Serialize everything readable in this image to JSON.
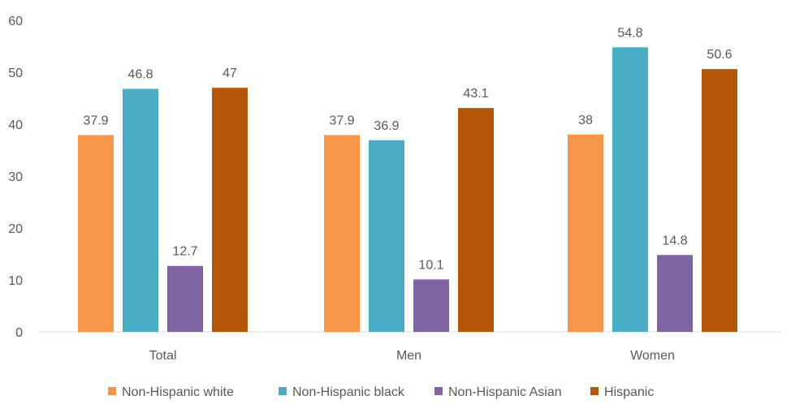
{
  "chart_data": {
    "type": "bar",
    "title": "",
    "xlabel": "",
    "ylabel": "",
    "ylim": [
      0,
      60
    ],
    "yticks": [
      "0",
      "10",
      "20",
      "30",
      "40",
      "50",
      "60"
    ],
    "grid": false,
    "legend_position": "bottom",
    "categories": [
      "Total",
      "Men",
      "Women"
    ],
    "series": [
      {
        "name": "Non-Hispanic white",
        "color": "#F79646",
        "values": [
          37.9,
          37.9,
          38
        ],
        "labels": [
          "37.9",
          "37.9",
          "38"
        ]
      },
      {
        "name": "Non-Hispanic black",
        "color": "#4BACC6",
        "values": [
          46.8,
          36.9,
          54.8
        ],
        "labels": [
          "46.8",
          "36.9",
          "54.8"
        ]
      },
      {
        "name": "Non-Hispanic Asian",
        "color": "#8064A2",
        "values": [
          12.7,
          10.1,
          14.8
        ],
        "labels": [
          "12.7",
          "10.1",
          "14.8"
        ]
      },
      {
        "name": "Hispanic",
        "color": "#B65708",
        "values": [
          47,
          43.1,
          50.6
        ],
        "labels": [
          "47",
          "43.1",
          "50.6"
        ]
      }
    ]
  }
}
